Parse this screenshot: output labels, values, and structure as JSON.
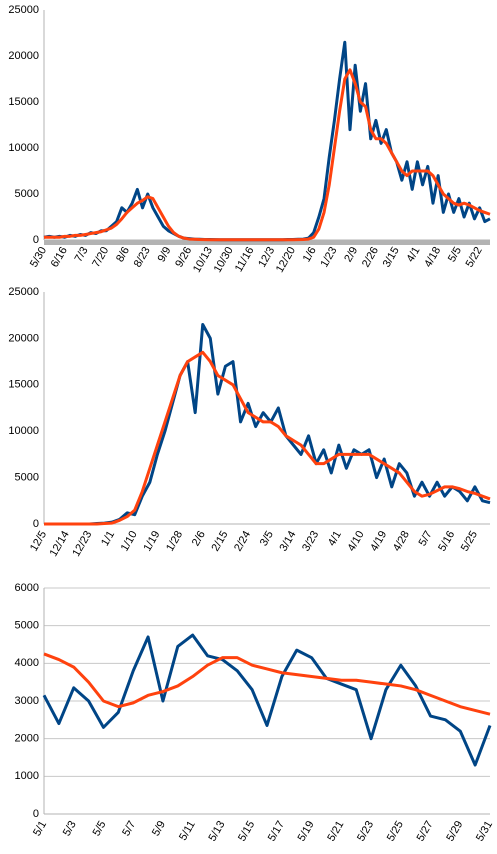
{
  "chart_data": [
    {
      "type": "line",
      "categories": [
        "5/30",
        null,
        null,
        null,
        "6/16",
        null,
        null,
        null,
        "7/3",
        null,
        null,
        null,
        "7/20",
        null,
        null,
        null,
        "8/6",
        null,
        null,
        null,
        "8/23",
        null,
        null,
        null,
        "9/9",
        null,
        null,
        null,
        "9/26",
        null,
        null,
        null,
        "10/13",
        null,
        null,
        null,
        "10/30",
        null,
        null,
        null,
        "11/16",
        null,
        null,
        null,
        "12/3",
        null,
        null,
        null,
        "12/20",
        null,
        null,
        null,
        "1/6",
        null,
        null,
        null,
        "1/23",
        null,
        null,
        null,
        "2/9",
        null,
        null,
        null,
        "2/26",
        null,
        null,
        null,
        "3/15",
        null,
        null,
        null,
        "4/1",
        null,
        null,
        null,
        "4/18",
        null,
        null,
        null,
        "5/5",
        null,
        null,
        null,
        "5/22",
        null,
        null
      ],
      "series": [
        {
          "color": "#004586",
          "values": [
            300,
            400,
            300,
            400,
            300,
            500,
            400,
            600,
            500,
            800,
            700,
            1000,
            1000,
            1500,
            2000,
            3500,
            3000,
            4000,
            5500,
            3500,
            5000,
            3500,
            2500,
            1500,
            1000,
            700,
            400,
            200,
            150,
            100,
            80,
            50,
            50,
            40,
            30,
            30,
            30,
            30,
            30,
            30,
            30,
            30,
            30,
            30,
            30,
            30,
            30,
            50,
            50,
            80,
            100,
            200,
            800,
            2500,
            4500,
            9000,
            13000,
            17500,
            21500,
            12000,
            19000,
            14000,
            17000,
            11000,
            13000,
            10500,
            12000,
            9500,
            8500,
            6500,
            8500,
            5500,
            8500,
            6000,
            8000,
            4000,
            7000,
            3000,
            5000,
            3000,
            4500,
            2500,
            4000,
            2300,
            3500,
            2000,
            2300
          ]
        },
        {
          "color": "#ff420e",
          "values": [
            300,
            300,
            300,
            300,
            400,
            400,
            500,
            500,
            600,
            700,
            800,
            900,
            1100,
            1300,
            1700,
            2300,
            3000,
            3500,
            4000,
            4300,
            4700,
            4500,
            3500,
            2500,
            1500,
            800,
            400,
            200,
            100,
            80,
            50,
            40,
            30,
            30,
            30,
            30,
            30,
            30,
            30,
            30,
            30,
            30,
            30,
            30,
            30,
            30,
            30,
            30,
            30,
            40,
            60,
            100,
            300,
            1200,
            3000,
            6000,
            10000,
            14000,
            17500,
            18500,
            17000,
            15000,
            14500,
            12000,
            11000,
            11000,
            10500,
            9500,
            8500,
            7500,
            7000,
            7500,
            7500,
            7500,
            7500,
            7000,
            6000,
            5000,
            4500,
            4000,
            3800,
            4000,
            3800,
            3500,
            3200,
            3000,
            2800
          ]
        }
      ],
      "ylim": [
        0,
        25000
      ],
      "yticks": [
        0,
        5000,
        10000,
        15000,
        20000,
        25000
      ],
      "grid": false
    },
    {
      "type": "line",
      "categories": [
        "12/5",
        null,
        null,
        "12/14",
        null,
        null,
        "12/23",
        null,
        null,
        "1/1",
        null,
        null,
        "1/10",
        null,
        null,
        "1/19",
        null,
        null,
        "1/28",
        null,
        null,
        "2/6",
        null,
        null,
        "2/15",
        null,
        null,
        "2/24",
        null,
        null,
        "3/5",
        null,
        null,
        "3/14",
        null,
        null,
        "3/23",
        null,
        null,
        "4/1",
        null,
        null,
        "4/10",
        null,
        null,
        "4/19",
        null,
        null,
        "4/28",
        null,
        null,
        "5/7",
        null,
        null,
        "5/16",
        null,
        null,
        "5/25",
        null,
        null
      ],
      "series": [
        {
          "color": "#004586",
          "values": [
            0,
            0,
            0,
            0,
            0,
            0,
            0,
            50,
            100,
            200,
            500,
            1200,
            1000,
            3000,
            4500,
            7500,
            10000,
            13000,
            16000,
            17500,
            12000,
            21500,
            20000,
            14000,
            17000,
            17500,
            11000,
            13000,
            10500,
            12000,
            11000,
            12500,
            9500,
            8500,
            7500,
            9500,
            6500,
            8000,
            5500,
            8500,
            6000,
            8000,
            7500,
            8000,
            5000,
            7000,
            4000,
            6500,
            5500,
            3000,
            4500,
            3000,
            4500,
            3000,
            4000,
            3500,
            2500,
            4000,
            2500,
            2300
          ]
        },
        {
          "color": "#ff420e",
          "values": [
            0,
            0,
            0,
            0,
            0,
            0,
            0,
            0,
            50,
            100,
            400,
            800,
            1500,
            3500,
            6000,
            8500,
            11000,
            13500,
            16000,
            17500,
            18000,
            18500,
            17500,
            16000,
            15500,
            15000,
            13500,
            12000,
            11500,
            11000,
            11000,
            10500,
            9500,
            9000,
            8500,
            7500,
            6500,
            6500,
            7000,
            7500,
            7500,
            7500,
            7500,
            7500,
            7000,
            6500,
            6000,
            5500,
            4500,
            3500,
            3000,
            3200,
            3600,
            4000,
            4000,
            3800,
            3500,
            3300,
            3000,
            2700
          ]
        }
      ],
      "ylim": [
        0,
        25000
      ],
      "yticks": [
        0,
        5000,
        10000,
        15000,
        20000,
        25000
      ],
      "grid": false
    },
    {
      "type": "line",
      "categories": [
        "5/1",
        null,
        "5/3",
        null,
        "5/5",
        null,
        "5/7",
        null,
        "5/9",
        null,
        "5/11",
        null,
        "5/13",
        null,
        "5/15",
        null,
        "5/17",
        null,
        "5/19",
        null,
        "5/21",
        null,
        "5/23",
        null,
        "5/25",
        null,
        "5/27",
        null,
        "5/29",
        null,
        "5/31"
      ],
      "series": [
        {
          "color": "#004586",
          "values": [
            3150,
            2400,
            3350,
            3000,
            2300,
            2700,
            3800,
            4700,
            3000,
            4450,
            4750,
            4200,
            4100,
            3800,
            3300,
            2350,
            3650,
            4350,
            4150,
            3600,
            3450,
            3300,
            2000,
            3300,
            3950,
            3400,
            2600,
            2500,
            2200,
            1300,
            2350
          ]
        },
        {
          "color": "#ff420e",
          "values": [
            4250,
            4100,
            3900,
            3500,
            3000,
            2850,
            2950,
            3150,
            3250,
            3400,
            3650,
            3950,
            4150,
            4150,
            3950,
            3850,
            3750,
            3700,
            3650,
            3600,
            3550,
            3550,
            3500,
            3450,
            3400,
            3300,
            3150,
            3000,
            2850,
            2750,
            2650
          ]
        }
      ],
      "ylim": [
        0,
        6000
      ],
      "yticks": [
        0,
        1000,
        2000,
        3000,
        4000,
        5000,
        6000
      ],
      "grid": true
    }
  ]
}
